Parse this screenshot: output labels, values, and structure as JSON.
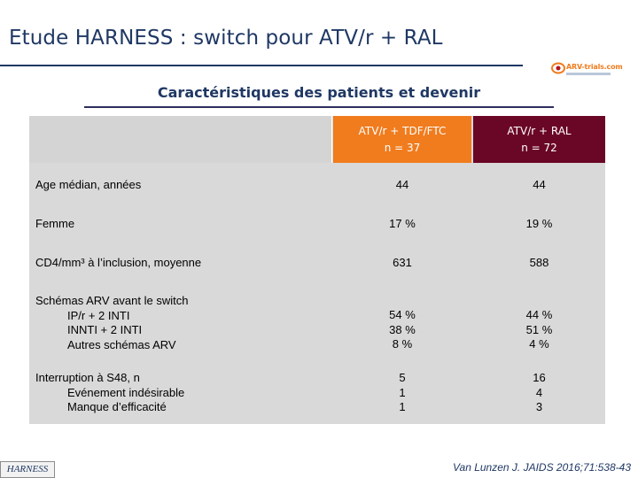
{
  "slide": {
    "title": "Etude HARNESS : switch pour ATV/r + RAL",
    "subtitle": "Caractéristiques des patients et devenir",
    "logo_text": "ARV-trials.com",
    "footer_label": "HARNESS",
    "reference": "Van Lunzen J. JAIDS 2016;71:538-43"
  },
  "table": {
    "columns": [
      {
        "line1": "ATV/r + TDF/FTC",
        "line2": "n = 37",
        "color": "#f07c1e"
      },
      {
        "line1": "ATV/r + RAL",
        "line2": "n = 72",
        "color": "#6a0626"
      }
    ],
    "rows": [
      {
        "label": "Age médian, années",
        "subs": [],
        "v1": [
          "44"
        ],
        "v2": [
          "44"
        ]
      },
      {
        "label": "Femme",
        "subs": [],
        "v1": [
          "17 %"
        ],
        "v2": [
          "19 %"
        ]
      },
      {
        "label": "CD4/mm³ à l’inclusion, moyenne",
        "subs": [],
        "v1": [
          "631"
        ],
        "v2": [
          "588"
        ]
      },
      {
        "label": "Schémas ARV avant le switch",
        "subs": [
          "IP/r + 2 INTI",
          "INNTI + 2 INTI",
          "Autres schémas ARV"
        ],
        "v1": [
          "54 %",
          "38 %",
          "8 %"
        ],
        "v2": [
          "44 %",
          "51 %",
          "4 %"
        ]
      },
      {
        "label": "Interruption à S48, n",
        "subs": [
          "Evénement indésirable",
          "Manque d’efficacité"
        ],
        "v1": [
          "5",
          "1",
          "1"
        ],
        "v2": [
          "16",
          "4",
          "3"
        ]
      }
    ]
  }
}
